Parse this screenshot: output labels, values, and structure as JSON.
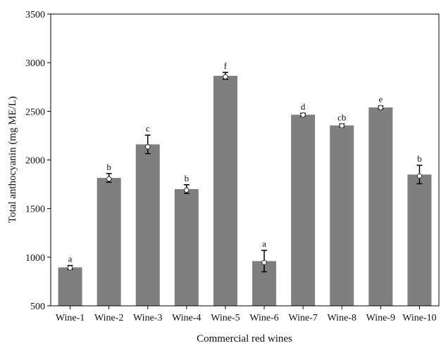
{
  "chart_data": {
    "type": "bar",
    "title": "",
    "xlabel": "Commercial red wines",
    "ylabel": "Total anthocyanin (mg ME/L)",
    "ylim": [
      500,
      3500
    ],
    "yticks": [
      500,
      1000,
      1500,
      2000,
      2500,
      3000,
      3500
    ],
    "grid": false,
    "legend": "none",
    "categories": [
      "Wine-1",
      "Wine-2",
      "Wine-3",
      "Wine-4",
      "Wine-5",
      "Wine-6",
      "Wine-7",
      "Wine-8",
      "Wine-9",
      "Wine-10"
    ],
    "values": [
      895,
      1815,
      2160,
      1700,
      2865,
      960,
      2465,
      2355,
      2540,
      1850
    ],
    "error": [
      20,
      45,
      95,
      45,
      35,
      110,
      15,
      15,
      15,
      95
    ],
    "markers": [
      890,
      1805,
      2135,
      1690,
      2855,
      945,
      2462,
      2352,
      2538,
      1835
    ],
    "significance_labels": [
      "a",
      "b",
      "c",
      "b",
      "f",
      "a",
      "d",
      "cb",
      "e",
      "b"
    ],
    "colors": {
      "bar": "#7f7f7f",
      "axis": "#000000",
      "marker_fill": "#ffffff"
    }
  }
}
